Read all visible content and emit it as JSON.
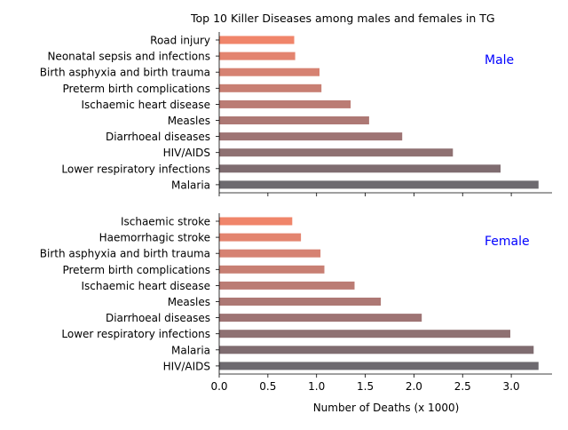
{
  "chart_data": [
    {
      "type": "bar",
      "orientation": "horizontal",
      "title": "Top 10 Killer Diseases among males and females in TG",
      "panel_label": "Male",
      "panel_label_color": "#0000ff",
      "categories": [
        "Road injury",
        "Neonatal sepsis and infections",
        "Birth asphyxia and birth trauma",
        "Preterm birth complications",
        "Ischaemic heart disease",
        "Measles",
        "Diarrhoeal diseases",
        "HIV/AIDS",
        "Lower respiratory infections",
        "Malaria"
      ],
      "values": [
        0.77,
        0.78,
        1.03,
        1.05,
        1.35,
        1.54,
        1.88,
        2.4,
        2.89,
        3.28
      ],
      "colors": [
        "#f0856a",
        "#e3846f",
        "#d68272",
        "#c87f73",
        "#bb7c74",
        "#ad7874",
        "#9e7474",
        "#8f7172",
        "#7f6c70",
        "#6d6a6f"
      ],
      "xlim": [
        0,
        3.45
      ],
      "grid": false
    },
    {
      "type": "bar",
      "orientation": "horizontal",
      "panel_label": "Female",
      "panel_label_color": "#0000ff",
      "categories": [
        "Ischaemic stroke",
        "Haemorrhagic stroke",
        "Birth asphyxia and birth trauma",
        "Preterm birth complications",
        "Ischaemic heart disease",
        "Measles",
        "Diarrhoeal diseases",
        "Lower respiratory infections",
        "Malaria",
        "HIV/AIDS"
      ],
      "values": [
        0.75,
        0.84,
        1.04,
        1.08,
        1.39,
        1.66,
        2.08,
        2.99,
        3.23,
        3.28
      ],
      "colors": [
        "#f0856a",
        "#e3846f",
        "#d68272",
        "#c87f73",
        "#bb7c74",
        "#ad7874",
        "#9e7474",
        "#8f7172",
        "#7f6c70",
        "#6d6a6f"
      ],
      "xlim": [
        0,
        3.45
      ],
      "xticks": [
        "0.0",
        "0.5",
        "1.0",
        "1.5",
        "2.0",
        "2.5",
        "3.0"
      ],
      "xlabel": "Number of Deaths (x 1000)",
      "grid": false
    }
  ]
}
